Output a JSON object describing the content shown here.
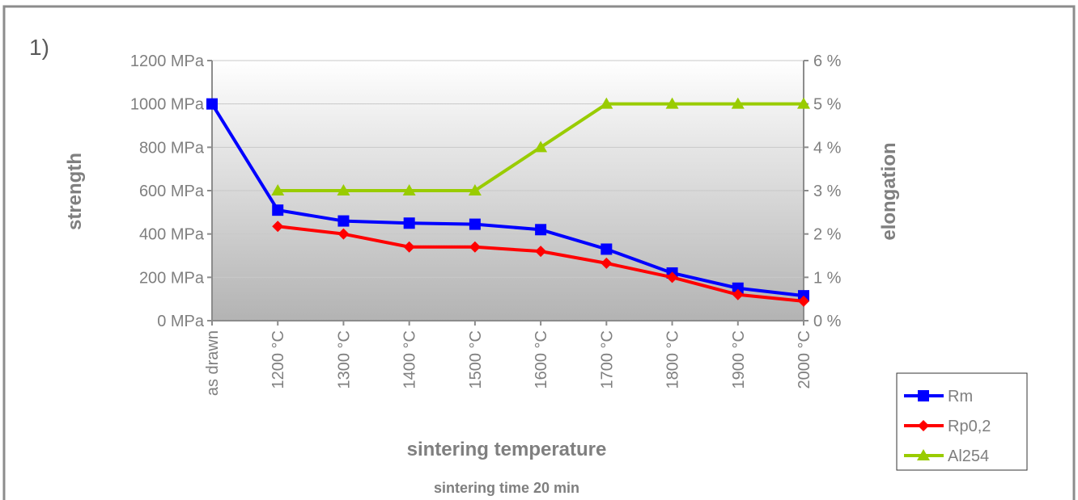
{
  "panel_label": "1)",
  "chart_data": {
    "type": "line",
    "categories": [
      "as drawn",
      "1200 °C",
      "1300 °C",
      "1400 °C",
      "1500 °C",
      "1600 °C",
      "1700 °C",
      "1800 °C",
      "1900 °C",
      "2000 °C"
    ],
    "xlabel": "sintering temperature",
    "note": "sintering time 20 min",
    "ylabel_left": "strength",
    "ylabel_right": "elongation",
    "ylim_left": [
      0,
      1200
    ],
    "ylim_right": [
      0,
      6
    ],
    "left_ticks": [
      "0 MPa",
      "200 MPa",
      "400 MPa",
      "600 MPa",
      "800 MPa",
      "1000 MPa",
      "1200 MPa"
    ],
    "right_ticks": [
      "0 %",
      "1 %",
      "2 %",
      "3 %",
      "4 %",
      "5 %",
      "6 %"
    ],
    "grid": true,
    "legend_position": "bottom-right",
    "series": [
      {
        "name": "Rm",
        "axis": "left",
        "color": "#0000ff",
        "marker": "square",
        "values": [
          1000,
          510,
          460,
          450,
          445,
          420,
          330,
          220,
          150,
          115
        ]
      },
      {
        "name": "Rp0,2",
        "axis": "left",
        "color": "#ff0000",
        "marker": "diamond",
        "values": [
          null,
          435,
          400,
          340,
          340,
          320,
          265,
          200,
          120,
          90
        ]
      },
      {
        "name": "Al254",
        "axis": "right",
        "color": "#99cc00",
        "marker": "triangle",
        "values": [
          null,
          3,
          3,
          3,
          3,
          4,
          5,
          5,
          5,
          5
        ]
      }
    ]
  }
}
